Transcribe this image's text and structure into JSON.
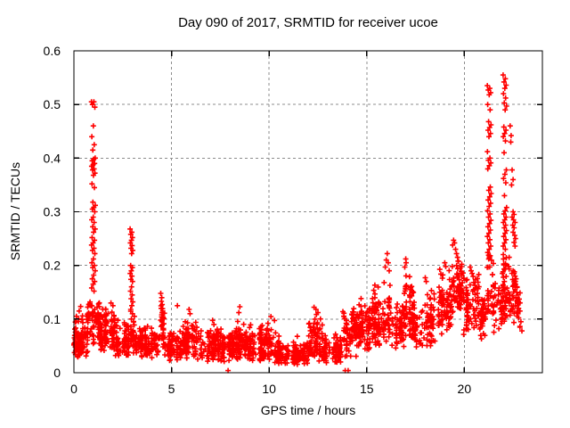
{
  "page": {
    "background": "#ffffff"
  },
  "chart_data": {
    "type": "scatter",
    "title": "Day 090 of 2017, SRMTID for receiver ucoe",
    "xlabel": "GPS time / hours",
    "ylabel": "SRMTID / TECUs",
    "xlim": [
      0,
      24
    ],
    "ylim": [
      0,
      0.6
    ],
    "xticks": {
      "values": [
        0,
        5,
        10,
        15,
        20
      ],
      "labels": [
        "0",
        "5",
        "10",
        "15",
        "20"
      ]
    },
    "yticks": {
      "values": [
        0,
        0.1,
        0.2,
        0.3,
        0.4,
        0.5,
        0.6
      ],
      "labels": [
        "0",
        "0.1",
        "0.2",
        "0.3",
        "0.4",
        "0.5",
        "0.6"
      ]
    },
    "grid": {
      "show": true,
      "color": "#8c8c8c",
      "dash": "3,3"
    },
    "border_color": "#000000",
    "background": "#ffffff",
    "legend": "none",
    "marker": {
      "shape": "plus",
      "color": "#ff0000",
      "size": 7
    },
    "series": [
      {
        "name": "SRMTID",
        "columns": [
          {
            "x": 1.0,
            "spread": 0.2,
            "values": [
              0.505,
              0.505,
              0.5,
              0.495,
              0.46,
              0.44,
              0.425,
              0.415,
              0.4,
              0.398,
              0.395,
              0.39,
              0.388,
              0.385,
              0.38,
              0.378,
              0.372,
              0.368,
              0.352,
              0.345,
              0.318,
              0.312,
              0.308,
              0.305,
              0.3,
              0.29,
              0.285,
              0.28,
              0.272,
              0.268,
              0.262,
              0.252,
              0.247,
              0.242,
              0.238,
              0.232,
              0.228,
              0.222,
              0.212,
              0.205,
              0.2,
              0.196,
              0.19,
              0.182,
              0.175,
              0.17,
              0.165,
              0.158,
              0.152
            ]
          },
          {
            "x": 2.95,
            "spread": 0.14,
            "values": [
              0.268,
              0.262,
              0.258,
              0.252,
              0.247,
              0.242,
              0.237,
              0.232,
              0.228,
              0.222,
              0.2,
              0.196,
              0.19,
              0.185,
              0.18,
              0.174,
              0.17,
              0.16,
              0.152,
              0.145,
              0.138,
              0.132,
              0.125,
              0.118,
              0.11,
              0.1
            ]
          },
          {
            "x": 21.28,
            "spread": 0.2,
            "values": [
              0.535,
              0.53,
              0.527,
              0.522,
              0.518,
              0.5,
              0.49,
              0.468,
              0.462,
              0.457,
              0.452,
              0.446,
              0.44,
              0.412,
              0.4,
              0.396,
              0.391,
              0.386,
              0.38,
              0.346,
              0.34,
              0.334,
              0.328,
              0.322,
              0.316,
              0.31,
              0.302,
              0.296,
              0.29,
              0.284,
              0.278,
              0.272,
              0.266,
              0.26,
              0.254,
              0.248,
              0.242,
              0.236,
              0.23,
              0.224,
              0.218,
              0.212
            ]
          },
          {
            "x": 22.08,
            "spread": 0.18,
            "values": [
              0.555,
              0.548,
              0.542,
              0.536,
              0.53,
              0.52,
              0.512,
              0.503,
              0.497,
              0.49,
              0.458,
              0.452,
              0.446,
              0.44,
              0.432,
              0.41,
              0.378,
              0.37,
              0.362,
              0.354,
              0.33,
              0.308,
              0.302,
              0.296,
              0.29,
              0.285,
              0.28,
              0.275,
              0.27,
              0.265,
              0.26,
              0.254,
              0.248,
              0.242,
              0.236,
              0.23
            ]
          }
        ],
        "points": [
          [
            4.45,
            0.148
          ],
          [
            4.5,
            0.14
          ],
          [
            4.48,
            0.133
          ],
          [
            4.52,
            0.127
          ],
          [
            4.47,
            0.12
          ],
          [
            4.55,
            0.115
          ],
          [
            4.5,
            0.108
          ],
          [
            4.58,
            0.102
          ],
          [
            4.44,
            0.098
          ],
          [
            1.9,
            0.13
          ],
          [
            2.0,
            0.125
          ],
          [
            5.3,
            0.125
          ],
          [
            5.9,
            0.118
          ],
          [
            5.95,
            0.11
          ],
          [
            8.5,
            0.123
          ],
          [
            8.45,
            0.112
          ],
          [
            12.3,
            0.122
          ],
          [
            12.4,
            0.118
          ],
          [
            12.5,
            0.112
          ],
          [
            13.9,
            0.004
          ],
          [
            14.05,
            0.004
          ],
          [
            7.9,
            0.004
          ],
          [
            15.95,
            0.197
          ],
          [
            16.0,
            0.21
          ],
          [
            16.05,
            0.222
          ],
          [
            16.1,
            0.205
          ],
          [
            16.15,
            0.19
          ],
          [
            16.95,
            0.197
          ],
          [
            17.0,
            0.212
          ],
          [
            17.02,
            0.205
          ],
          [
            18.0,
            0.177
          ],
          [
            18.05,
            0.17
          ],
          [
            19.0,
            0.205
          ],
          [
            19.05,
            0.198
          ],
          [
            19.4,
            0.238
          ],
          [
            19.45,
            0.247
          ],
          [
            19.5,
            0.242
          ],
          [
            19.55,
            0.23
          ],
          [
            19.6,
            0.222
          ],
          [
            19.65,
            0.215
          ],
          [
            19.7,
            0.208
          ],
          [
            20.3,
            0.197
          ],
          [
            20.35,
            0.19
          ],
          [
            20.4,
            0.185
          ],
          [
            22.35,
            0.46
          ],
          [
            22.4,
            0.442
          ],
          [
            22.38,
            0.43
          ],
          [
            22.45,
            0.378
          ],
          [
            22.5,
            0.36
          ],
          [
            22.42,
            0.35
          ],
          [
            22.5,
            0.3
          ],
          [
            22.55,
            0.295
          ],
          [
            22.45,
            0.29
          ],
          [
            22.52,
            0.285
          ],
          [
            22.6,
            0.28
          ],
          [
            22.48,
            0.275
          ],
          [
            22.55,
            0.27
          ],
          [
            22.5,
            0.262
          ],
          [
            22.58,
            0.256
          ],
          [
            22.62,
            0.25
          ],
          [
            22.55,
            0.243
          ],
          [
            22.6,
            0.236
          ],
          [
            22.5,
            0.19
          ],
          [
            22.55,
            0.185
          ],
          [
            22.6,
            0.18
          ],
          [
            22.65,
            0.175
          ],
          [
            22.55,
            0.17
          ],
          [
            22.62,
            0.165
          ],
          [
            22.7,
            0.16
          ],
          [
            22.6,
            0.155
          ],
          [
            22.68,
            0.15
          ],
          [
            22.75,
            0.145
          ],
          [
            22.65,
            0.14
          ],
          [
            22.72,
            0.135
          ],
          [
            22.8,
            0.13
          ],
          [
            22.7,
            0.125
          ],
          [
            22.78,
            0.12
          ],
          [
            22.85,
            0.115
          ],
          [
            22.75,
            0.11
          ],
          [
            22.9,
            0.095
          ],
          [
            22.85,
            0.085
          ],
          [
            22.95,
            0.078
          ],
          [
            21.95,
            0.185
          ],
          [
            22.0,
            0.178
          ],
          [
            22.05,
            0.17
          ],
          [
            21.98,
            0.162
          ],
          [
            22.03,
            0.155
          ],
          [
            22.08,
            0.148
          ],
          [
            22.0,
            0.14
          ],
          [
            22.06,
            0.132
          ],
          [
            22.1,
            0.125
          ],
          [
            22.02,
            0.118
          ],
          [
            22.07,
            0.11
          ],
          [
            22.12,
            0.103
          ],
          [
            22.05,
            0.096
          ]
        ],
        "bands": [
          [
            0.0,
            0.7,
            100,
            0.062,
            0.02,
            0.028,
            0.125
          ],
          [
            0.7,
            1.3,
            60,
            0.095,
            0.035,
            0.045,
            0.15
          ],
          [
            1.3,
            2.1,
            90,
            0.075,
            0.025,
            0.035,
            0.135
          ],
          [
            2.1,
            2.8,
            70,
            0.058,
            0.018,
            0.03,
            0.105
          ],
          [
            2.8,
            3.1,
            30,
            0.075,
            0.025,
            0.035,
            0.125
          ],
          [
            3.1,
            4.35,
            110,
            0.052,
            0.016,
            0.025,
            0.1
          ],
          [
            4.35,
            4.65,
            30,
            0.085,
            0.022,
            0.045,
            0.125
          ],
          [
            4.65,
            5.6,
            90,
            0.048,
            0.016,
            0.022,
            0.095
          ],
          [
            5.6,
            6.4,
            80,
            0.055,
            0.02,
            0.022,
            0.115
          ],
          [
            6.4,
            7.6,
            110,
            0.048,
            0.016,
            0.02,
            0.1
          ],
          [
            7.6,
            8.3,
            70,
            0.045,
            0.015,
            0.02,
            0.09
          ],
          [
            8.3,
            9.0,
            70,
            0.058,
            0.02,
            0.025,
            0.115
          ],
          [
            9.0,
            9.6,
            60,
            0.05,
            0.018,
            0.022,
            0.1
          ],
          [
            9.6,
            10.3,
            70,
            0.055,
            0.02,
            0.025,
            0.11
          ],
          [
            10.3,
            11.4,
            100,
            0.038,
            0.013,
            0.016,
            0.075
          ],
          [
            11.4,
            12.0,
            60,
            0.035,
            0.014,
            0.015,
            0.08
          ],
          [
            12.0,
            12.8,
            80,
            0.055,
            0.025,
            0.02,
            0.115
          ],
          [
            12.8,
            13.7,
            80,
            0.04,
            0.015,
            0.018,
            0.08
          ],
          [
            13.7,
            14.5,
            70,
            0.075,
            0.025,
            0.03,
            0.13
          ],
          [
            14.5,
            15.3,
            80,
            0.085,
            0.025,
            0.04,
            0.14
          ],
          [
            15.3,
            16.3,
            100,
            0.1,
            0.03,
            0.05,
            0.185
          ],
          [
            16.3,
            16.9,
            60,
            0.085,
            0.025,
            0.045,
            0.15
          ],
          [
            16.9,
            17.3,
            45,
            0.115,
            0.03,
            0.06,
            0.19
          ],
          [
            17.3,
            18.6,
            120,
            0.095,
            0.03,
            0.045,
            0.165
          ],
          [
            18.6,
            19.35,
            75,
            0.125,
            0.03,
            0.07,
            0.195
          ],
          [
            19.35,
            19.95,
            60,
            0.155,
            0.035,
            0.09,
            0.23
          ],
          [
            19.95,
            20.75,
            75,
            0.125,
            0.03,
            0.07,
            0.195
          ],
          [
            20.75,
            21.15,
            40,
            0.1,
            0.025,
            0.06,
            0.15
          ],
          [
            21.15,
            21.5,
            30,
            0.16,
            0.035,
            0.1,
            0.22
          ],
          [
            21.5,
            21.95,
            35,
            0.12,
            0.025,
            0.075,
            0.175
          ],
          [
            21.95,
            22.3,
            30,
            0.16,
            0.04,
            0.1,
            0.235
          ],
          [
            22.3,
            22.95,
            40,
            0.14,
            0.035,
            0.08,
            0.2
          ]
        ]
      }
    ]
  }
}
